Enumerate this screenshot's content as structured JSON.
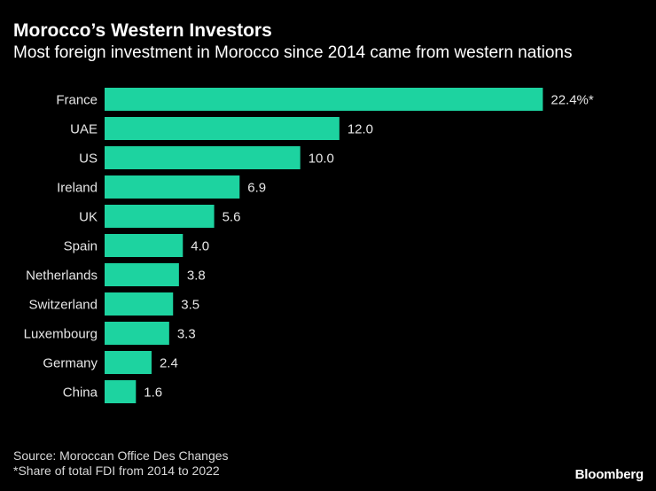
{
  "title": "Morocco’s Western Investors",
  "subtitle": "Most foreign investment in Morocco since 2014 came from western nations",
  "chart_data": {
    "type": "bar",
    "orientation": "horizontal",
    "categories": [
      "France",
      "UAE",
      "US",
      "Ireland",
      "UK",
      "Spain",
      "Netherlands",
      "Switzerland",
      "Luxembourg",
      "Germany",
      "China"
    ],
    "values": [
      22.4,
      12.0,
      10.0,
      6.9,
      5.6,
      4.0,
      3.8,
      3.5,
      3.3,
      2.4,
      1.6
    ],
    "data_labels": [
      "22.4%*",
      "12.0",
      "10.0",
      "6.9",
      "5.6",
      "4.0",
      "3.8",
      "3.5",
      "3.3",
      "2.4",
      "1.6"
    ],
    "bar_color": "#1dd3a0",
    "grid": false,
    "legend": "none"
  },
  "footer": {
    "source": "Source: Moroccan Office Des Changes",
    "note": "*Share of total FDI from 2014 to 2022"
  },
  "logo": "Bloomberg"
}
